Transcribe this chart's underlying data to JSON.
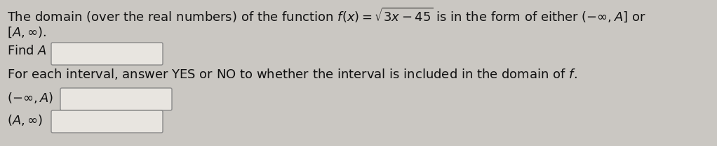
{
  "bg_color": "#cac7c2",
  "text_color": "#111111",
  "fig_width": 10.22,
  "fig_height": 2.09,
  "dpi": 100,
  "line1_text": "The domain (over the real numbers) of the function $f(x) = \\sqrt{3x - 45}$ is in the form of either $(-\\infty, A]$ or",
  "line2_text": "$[A, \\infty)$.",
  "find_text": "Find $A$",
  "interval_text": "For each interval, answer YES or NO to whether the interval is included in the domain of $f$.",
  "interval1_text": "$(-\\infty, A)$",
  "interval2_text": "$(A, \\infty)$",
  "box_facecolor": "#e8e5e0",
  "box_edgecolor": "#888888",
  "font_size": 13.0
}
